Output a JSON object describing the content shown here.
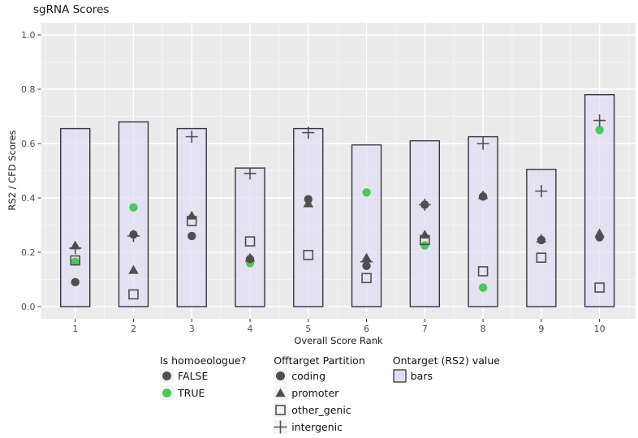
{
  "title": "sgRNA Scores",
  "axes": {
    "x": {
      "label": "Overall Score Rank",
      "tick_values": [
        1,
        2,
        3,
        4,
        5,
        6,
        7,
        8,
        9,
        10
      ]
    },
    "y": {
      "label": "RS2 / CFD Scores",
      "tick_values": [
        0.0,
        0.2,
        0.4,
        0.6,
        0.8,
        1.0
      ],
      "tick_labels": [
        "0.0",
        "0.2",
        "0.4",
        "0.6",
        "0.8",
        "1.0"
      ]
    }
  },
  "chart_data": {
    "type": "bar",
    "overlay": "scatter",
    "title": "sgRNA Scores",
    "xlabel": "Overall Score Rank",
    "ylabel": "RS2 / CFD Scores",
    "ylim": [
      0,
      1.0
    ],
    "grid": "on",
    "categories": [
      1,
      2,
      3,
      4,
      5,
      6,
      7,
      8,
      9,
      10
    ],
    "bars": {
      "name": "Ontarget (RS2) value",
      "values": [
        0.655,
        0.68,
        0.655,
        0.51,
        0.655,
        0.595,
        0.61,
        0.625,
        0.505,
        0.78
      ]
    },
    "shape_map": {
      "coding": "circle",
      "promoter": "triangle",
      "other_genic": "square",
      "intergenic": "plus"
    },
    "points": [
      {
        "rank": 1,
        "partition": "promoter",
        "homoeologue": false,
        "value": 0.225
      },
      {
        "rank": 1,
        "partition": "intergenic",
        "homoeologue": false,
        "value": 0.215
      },
      {
        "rank": 1,
        "partition": "other_genic",
        "homoeologue": false,
        "value": 0.17
      },
      {
        "rank": 1,
        "partition": "coding",
        "homoeologue": true,
        "value": 0.165
      },
      {
        "rank": 1,
        "partition": "coding",
        "homoeologue": false,
        "value": 0.09
      },
      {
        "rank": 2,
        "partition": "coding",
        "homoeologue": true,
        "value": 0.365
      },
      {
        "rank": 2,
        "partition": "coding",
        "homoeologue": false,
        "value": 0.265
      },
      {
        "rank": 2,
        "partition": "intergenic",
        "homoeologue": false,
        "value": 0.26
      },
      {
        "rank": 2,
        "partition": "promoter",
        "homoeologue": false,
        "value": 0.135
      },
      {
        "rank": 2,
        "partition": "other_genic",
        "homoeologue": false,
        "value": 0.045
      },
      {
        "rank": 3,
        "partition": "intergenic",
        "homoeologue": false,
        "value": 0.625
      },
      {
        "rank": 3,
        "partition": "promoter",
        "homoeologue": false,
        "value": 0.335
      },
      {
        "rank": 3,
        "partition": "other_genic",
        "homoeologue": false,
        "value": 0.315
      },
      {
        "rank": 3,
        "partition": "coding",
        "homoeologue": false,
        "value": 0.26
      },
      {
        "rank": 4,
        "partition": "intergenic",
        "homoeologue": false,
        "value": 0.49
      },
      {
        "rank": 4,
        "partition": "other_genic",
        "homoeologue": false,
        "value": 0.24
      },
      {
        "rank": 4,
        "partition": "promoter",
        "homoeologue": false,
        "value": 0.18
      },
      {
        "rank": 4,
        "partition": "coding",
        "homoeologue": false,
        "value": 0.175
      },
      {
        "rank": 4,
        "partition": "coding",
        "homoeologue": true,
        "value": 0.16
      },
      {
        "rank": 5,
        "partition": "intergenic",
        "homoeologue": false,
        "value": 0.64
      },
      {
        "rank": 5,
        "partition": "coding",
        "homoeologue": false,
        "value": 0.395
      },
      {
        "rank": 5,
        "partition": "promoter",
        "homoeologue": false,
        "value": 0.38
      },
      {
        "rank": 5,
        "partition": "other_genic",
        "homoeologue": false,
        "value": 0.19
      },
      {
        "rank": 6,
        "partition": "coding",
        "homoeologue": true,
        "value": 0.42
      },
      {
        "rank": 6,
        "partition": "promoter",
        "homoeologue": false,
        "value": 0.18
      },
      {
        "rank": 6,
        "partition": "intergenic",
        "homoeologue": false,
        "value": 0.165
      },
      {
        "rank": 6,
        "partition": "coding",
        "homoeologue": false,
        "value": 0.15
      },
      {
        "rank": 6,
        "partition": "other_genic",
        "homoeologue": false,
        "value": 0.105
      },
      {
        "rank": 7,
        "partition": "coding",
        "homoeologue": false,
        "value": 0.375
      },
      {
        "rank": 7,
        "partition": "intergenic",
        "homoeologue": false,
        "value": 0.375
      },
      {
        "rank": 7,
        "partition": "promoter",
        "homoeologue": false,
        "value": 0.265
      },
      {
        "rank": 7,
        "partition": "other_genic",
        "homoeologue": false,
        "value": 0.245
      },
      {
        "rank": 7,
        "partition": "coding",
        "homoeologue": true,
        "value": 0.225
      },
      {
        "rank": 8,
        "partition": "intergenic",
        "homoeologue": false,
        "value": 0.6
      },
      {
        "rank": 8,
        "partition": "promoter",
        "homoeologue": false,
        "value": 0.41
      },
      {
        "rank": 8,
        "partition": "coding",
        "homoeologue": false,
        "value": 0.405
      },
      {
        "rank": 8,
        "partition": "other_genic",
        "homoeologue": false,
        "value": 0.13
      },
      {
        "rank": 8,
        "partition": "coding",
        "homoeologue": true,
        "value": 0.07
      },
      {
        "rank": 9,
        "partition": "intergenic",
        "homoeologue": false,
        "value": 0.425
      },
      {
        "rank": 9,
        "partition": "promoter",
        "homoeologue": false,
        "value": 0.25
      },
      {
        "rank": 9,
        "partition": "coding",
        "homoeologue": false,
        "value": 0.245
      },
      {
        "rank": 9,
        "partition": "other_genic",
        "homoeologue": false,
        "value": 0.18
      },
      {
        "rank": 10,
        "partition": "intergenic",
        "homoeologue": false,
        "value": 0.685
      },
      {
        "rank": 10,
        "partition": "coding",
        "homoeologue": true,
        "value": 0.65
      },
      {
        "rank": 10,
        "partition": "promoter",
        "homoeologue": false,
        "value": 0.27
      },
      {
        "rank": 10,
        "partition": "coding",
        "homoeologue": false,
        "value": 0.255
      },
      {
        "rank": 10,
        "partition": "other_genic",
        "homoeologue": false,
        "value": 0.07
      }
    ]
  },
  "legends": [
    {
      "title": "Is homoeologue?",
      "items": [
        {
          "label": "FALSE",
          "shape": "circle",
          "color": "dark"
        },
        {
          "label": "TRUE",
          "shape": "circle",
          "color": "green"
        }
      ]
    },
    {
      "title": "Offtarget Partition",
      "items": [
        {
          "label": "coding",
          "shape": "circle",
          "color": "dark"
        },
        {
          "label": "promoter",
          "shape": "triangle",
          "color": "dark"
        },
        {
          "label": "other_genic",
          "shape": "square",
          "color": "dark"
        },
        {
          "label": "intergenic",
          "shape": "plus",
          "color": "dark"
        }
      ]
    },
    {
      "title": "Ontarget (RS2) value",
      "items": [
        {
          "label": "bars",
          "shape": "bar-swatch",
          "color": "bar"
        }
      ]
    }
  ],
  "colors": {
    "panel_bg": "#EBEBEB",
    "grid_major": "#FFFFFF",
    "grid_minor": "#F5F5F5",
    "bar_fill": "#E0DEF2",
    "bar_stroke": "#35353D",
    "point_dark": "#4F4F4F",
    "point_green": "#4CC85A",
    "axis_text": "#4D4D4D",
    "tick_mark": "#333333",
    "title_text": "#1A1A1A",
    "legend_key_bg": "#F3F3F3"
  }
}
